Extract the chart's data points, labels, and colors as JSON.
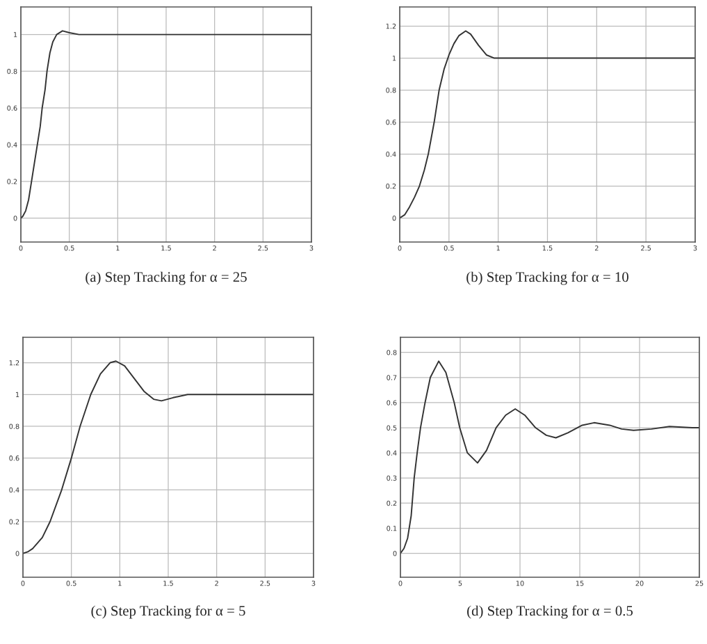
{
  "chart_data": [
    {
      "type": "line",
      "title": "(a) Step Tracking for α = 25",
      "grid": true,
      "xlim": [
        0,
        3
      ],
      "xticks": [
        0,
        0.5,
        1,
        1.5,
        2,
        2.5,
        3
      ],
      "ylim": [
        -0.13,
        1.15
      ],
      "yticks": [
        0,
        0.2,
        0.4,
        0.6,
        0.8,
        1
      ],
      "series": [
        {
          "color": "#333333",
          "x": [
            0,
            0.02,
            0.05,
            0.08,
            0.11,
            0.14,
            0.17,
            0.2,
            0.22,
            0.25,
            0.27,
            0.3,
            0.33,
            0.37,
            0.43,
            0.5,
            0.6,
            1,
            2,
            3
          ],
          "values": [
            0,
            0.01,
            0.04,
            0.1,
            0.2,
            0.3,
            0.4,
            0.5,
            0.6,
            0.7,
            0.8,
            0.9,
            0.96,
            1.0,
            1.02,
            1.01,
            1.0,
            1.0,
            1.0,
            1.0
          ]
        }
      ]
    },
    {
      "type": "line",
      "title": "(b) Step Tracking for α = 10",
      "grid": true,
      "xlim": [
        0,
        3
      ],
      "xticks": [
        0,
        0.5,
        1,
        1.5,
        2,
        2.5,
        3
      ],
      "ylim": [
        -0.15,
        1.32
      ],
      "yticks": [
        0,
        0.2,
        0.4,
        0.6,
        0.8,
        1,
        1.2
      ],
      "series": [
        {
          "color": "#333333",
          "x": [
            0,
            0.05,
            0.1,
            0.15,
            0.2,
            0.25,
            0.29,
            0.35,
            0.4,
            0.45,
            0.5,
            0.55,
            0.6,
            0.67,
            0.72,
            0.8,
            0.88,
            0.96,
            1.5,
            2,
            3
          ],
          "values": [
            0,
            0.02,
            0.07,
            0.13,
            0.2,
            0.3,
            0.4,
            0.6,
            0.8,
            0.93,
            1.02,
            1.09,
            1.14,
            1.17,
            1.15,
            1.08,
            1.02,
            1.0,
            1.0,
            1.0,
            1.0
          ]
        }
      ]
    },
    {
      "type": "line",
      "title": "(c) Step Tracking for α = 5",
      "grid": true,
      "xlim": [
        0,
        3
      ],
      "xticks": [
        0,
        0.5,
        1,
        1.5,
        2,
        2.5,
        3
      ],
      "ylim": [
        -0.15,
        1.36
      ],
      "yticks": [
        0,
        0.2,
        0.4,
        0.6,
        0.8,
        1,
        1.2
      ],
      "series": [
        {
          "color": "#333333",
          "x": [
            0,
            0.05,
            0.1,
            0.2,
            0.28,
            0.4,
            0.5,
            0.59,
            0.7,
            0.8,
            0.9,
            0.96,
            1.05,
            1.15,
            1.25,
            1.35,
            1.43,
            1.55,
            1.7,
            2,
            3
          ],
          "values": [
            0,
            0.01,
            0.03,
            0.1,
            0.2,
            0.4,
            0.6,
            0.8,
            1.0,
            1.13,
            1.2,
            1.21,
            1.18,
            1.1,
            1.02,
            0.97,
            0.96,
            0.98,
            1.0,
            1.0,
            1.0
          ]
        }
      ]
    },
    {
      "type": "line",
      "title": "(d) Step Tracking for α = 0.5",
      "grid": true,
      "xlim": [
        0,
        25
      ],
      "xticks": [
        0,
        5,
        10,
        15,
        20,
        25
      ],
      "ylim": [
        -0.095,
        0.86
      ],
      "yticks": [
        0,
        0.1,
        0.2,
        0.3,
        0.4,
        0.5,
        0.6,
        0.7,
        0.8
      ],
      "series": [
        {
          "color": "#333333",
          "x": [
            0,
            0.3,
            0.6,
            0.9,
            1.15,
            1.4,
            1.68,
            2.06,
            2.5,
            3.2,
            3.8,
            4.5,
            4.96,
            5.6,
            6.45,
            7.2,
            8.0,
            8.8,
            9.6,
            10.4,
            11.3,
            12.2,
            13.0,
            14.0,
            15.2,
            16.2,
            17.5,
            18.5,
            19.5,
            21.0,
            22.5,
            24.4,
            25
          ],
          "values": [
            0,
            0.02,
            0.06,
            0.15,
            0.3,
            0.4,
            0.5,
            0.6,
            0.7,
            0.765,
            0.72,
            0.6,
            0.5,
            0.4,
            0.36,
            0.41,
            0.5,
            0.55,
            0.575,
            0.55,
            0.5,
            0.47,
            0.46,
            0.48,
            0.51,
            0.52,
            0.51,
            0.495,
            0.49,
            0.495,
            0.505,
            0.5,
            0.5
          ]
        }
      ]
    }
  ]
}
